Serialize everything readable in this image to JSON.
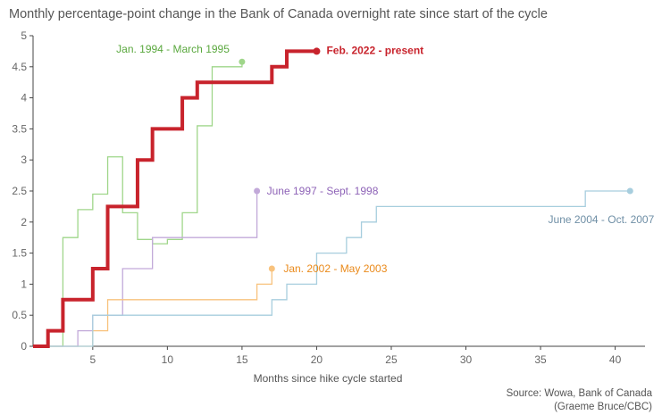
{
  "chart_data": {
    "type": "line",
    "title": "Monthly percentage-point change in the Bank of Canada overnight rate since start of the cycle",
    "xlabel": "Months since hike cycle started",
    "ylabel": "",
    "xlim": [
      1,
      42
    ],
    "ylim": [
      0,
      5
    ],
    "xticks": [
      5,
      10,
      15,
      20,
      25,
      30,
      35,
      40
    ],
    "yticks": [
      0,
      0.5,
      1,
      1.5,
      2,
      2.5,
      3,
      3.5,
      4,
      4.5,
      5
    ],
    "xtick_labels": [
      "5",
      "10",
      "15",
      "20",
      "25",
      "30",
      "35",
      "40"
    ],
    "ytick_labels": [
      "0",
      "0.5",
      "1",
      "1.5",
      "2",
      "2.5",
      "3",
      "3.5",
      "4",
      "4.5",
      "5"
    ],
    "grid": false,
    "source": "Source: Wowa, Bank of Canada",
    "credit": "(Graeme Bruce/CBC)",
    "series": [
      {
        "name": "Jan. 1994 - March 1995",
        "color": "#9fd68a",
        "step": true,
        "x": [
          1,
          2,
          3,
          4,
          5,
          6,
          7,
          8,
          9,
          10,
          11,
          12,
          13,
          14,
          15
        ],
        "y": [
          0,
          0,
          1.75,
          2.2,
          2.45,
          3.05,
          2.15,
          1.72,
          1.65,
          1.72,
          2.15,
          3.55,
          4.5,
          4.5,
          4.58
        ]
      },
      {
        "name": "June 1997 - Sept. 1998",
        "color": "#c2a9d9",
        "step": true,
        "x": [
          1,
          2,
          3,
          4,
          5,
          6,
          7,
          8,
          9,
          10,
          11,
          12,
          13,
          14,
          15,
          16
        ],
        "y": [
          0,
          0,
          0,
          0.25,
          0.5,
          0.5,
          1.25,
          1.25,
          1.75,
          1.75,
          1.75,
          1.75,
          1.75,
          1.75,
          1.75,
          2.5
        ]
      },
      {
        "name": "Jan. 2002 - May 2003",
        "color": "#f8c27d",
        "step": true,
        "x": [
          1,
          2,
          3,
          4,
          5,
          6,
          7,
          8,
          9,
          10,
          11,
          12,
          13,
          14,
          15,
          16,
          17
        ],
        "y": [
          0,
          0,
          0,
          0,
          0.25,
          0.75,
          0.75,
          0.75,
          0.75,
          0.75,
          0.75,
          0.75,
          0.75,
          0.75,
          0.75,
          1.0,
          1.25
        ]
      },
      {
        "name": "June 2004 - Oct. 2007",
        "color": "#a7cede",
        "step": true,
        "x": [
          1,
          2,
          3,
          4,
          5,
          6,
          7,
          8,
          9,
          10,
          11,
          12,
          13,
          14,
          15,
          16,
          17,
          18,
          19,
          20,
          21,
          22,
          23,
          24,
          25,
          26,
          27,
          28,
          29,
          30,
          31,
          32,
          33,
          34,
          35,
          36,
          37,
          38,
          39,
          40,
          41
        ],
        "y": [
          0,
          0,
          0,
          0,
          0.5,
          0.5,
          0.5,
          0.5,
          0.5,
          0.5,
          0.5,
          0.5,
          0.5,
          0.5,
          0.5,
          0.5,
          0.75,
          1.0,
          1.0,
          1.5,
          1.5,
          1.75,
          2.0,
          2.25,
          2.25,
          2.25,
          2.25,
          2.25,
          2.25,
          2.25,
          2.25,
          2.25,
          2.25,
          2.25,
          2.25,
          2.25,
          2.25,
          2.5,
          2.5,
          2.5,
          2.5
        ]
      },
      {
        "name": "Feb. 2022 - present",
        "color": "#c8232c",
        "step": true,
        "x": [
          1,
          2,
          3,
          4,
          5,
          6,
          7,
          8,
          9,
          10,
          11,
          12,
          13,
          14,
          15,
          16,
          17,
          18,
          19,
          20
        ],
        "y": [
          0,
          0.25,
          0.75,
          0.75,
          1.25,
          2.25,
          2.25,
          3.0,
          3.5,
          3.5,
          4.0,
          4.25,
          4.25,
          4.25,
          4.25,
          4.25,
          4.5,
          4.75,
          4.75,
          4.75
        ]
      }
    ]
  }
}
